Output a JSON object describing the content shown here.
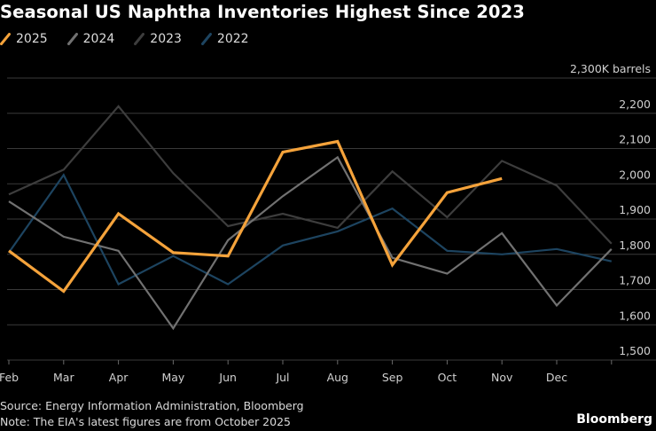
{
  "chart_data": {
    "type": "line",
    "title": "Seasonal US Naphtha Inventories Highest Since 2023",
    "unit_label": "2,300K barrels",
    "categories": [
      "Feb",
      "Mar",
      "Apr",
      "May",
      "Jun",
      "Jul",
      "Aug",
      "Sep",
      "Oct",
      "Nov",
      "Dec",
      ""
    ],
    "ylim": [
      1500,
      2300
    ],
    "yticks": [
      1500,
      1600,
      1700,
      1800,
      1900,
      2000,
      2100,
      2200,
      2300
    ],
    "ytick_labels": [
      "1,500",
      "1,600",
      "1,700",
      "1,800",
      "1,900",
      "2,000",
      "2,100",
      "2,200",
      "2,300K barrels"
    ],
    "grid": true,
    "series": [
      {
        "name": "2022",
        "color": "#1d4460",
        "values": [
          1805,
          2025,
          1715,
          1795,
          1715,
          1825,
          1865,
          1930,
          1810,
          1800,
          1815,
          1780
        ]
      },
      {
        "name": "2023",
        "color": "#3d3d3d",
        "values": [
          1970,
          2040,
          2220,
          2030,
          1880,
          1915,
          1875,
          2035,
          1905,
          2065,
          1995,
          1830
        ]
      },
      {
        "name": "2024",
        "color": "#717171",
        "values": [
          1950,
          1850,
          1810,
          1590,
          1840,
          1965,
          2075,
          1790,
          1745,
          1860,
          1655,
          1815
        ]
      },
      {
        "name": "2025",
        "color": "#f5a33b",
        "values": [
          1810,
          1695,
          1915,
          1805,
          1795,
          2090,
          2120,
          1770,
          1975,
          2015,
          null,
          null
        ]
      }
    ],
    "legend_order": [
      "2025",
      "2024",
      "2023",
      "2022"
    ],
    "legend_position": "top-left"
  },
  "footer": {
    "source": "Source: Energy Information Administration, Bloomberg",
    "note": "Note: The EIA's latest figures are from October 2025",
    "brand": "Bloomberg"
  }
}
